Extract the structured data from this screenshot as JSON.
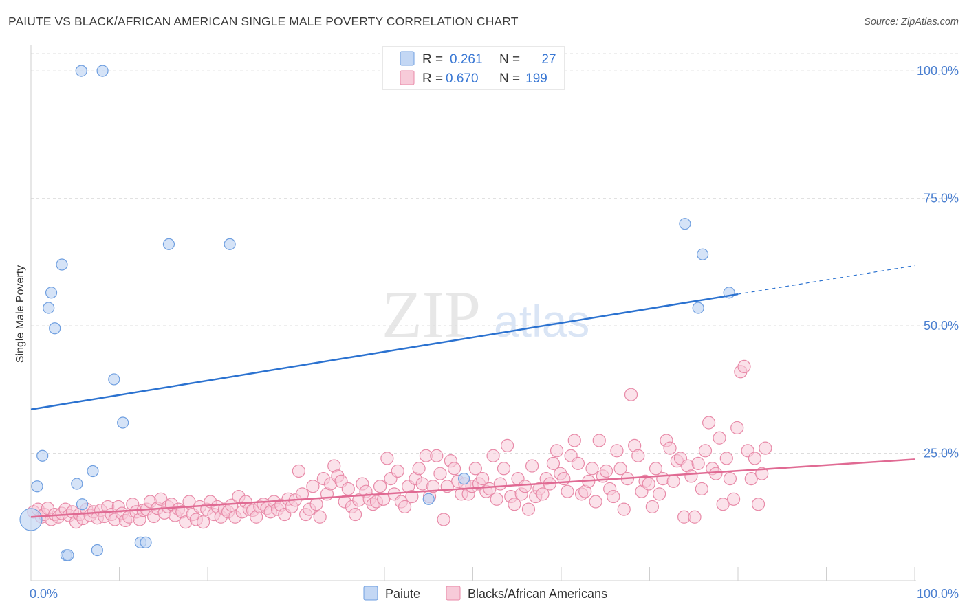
{
  "header": {
    "title": "PAIUTE VS BLACK/AFRICAN AMERICAN SINGLE MALE POVERTY CORRELATION CHART",
    "source": "Source: ZipAtlas.com"
  },
  "watermark": {
    "zip": "ZIP",
    "atlas": "atlas"
  },
  "legend": {
    "rows": [
      {
        "r_label": "R =",
        "r_value": "0.261",
        "n_label": "N =",
        "n_value": "27"
      },
      {
        "r_label": "R =",
        "r_value": "0.670",
        "n_label": "N =",
        "n_value": "199"
      }
    ]
  },
  "bottom_legend": {
    "paiute": "Paiute",
    "black": "Blacks/African Americans"
  },
  "colors": {
    "paiute": "#6f9fe0",
    "paiute_fill": "#c3d7f4",
    "paiute_line": "#2b72d0",
    "black": "#e88aa8",
    "black_fill": "#f7cbd9",
    "black_line": "#e06a93",
    "tick_label": "#4a7fd0",
    "grid": "#dddddd"
  },
  "chart_data": {
    "type": "scatter",
    "title": "PAIUTE VS BLACK/AFRICAN AMERICAN SINGLE MALE POVERTY CORRELATION CHART",
    "xlabel": "",
    "ylabel": "Single Male Poverty",
    "xlim": [
      0,
      100
    ],
    "ylim": [
      0,
      105
    ],
    "x_tick_labels": [
      "0.0%",
      "100.0%"
    ],
    "y_tick_labels": [
      "25.0%",
      "50.0%",
      "75.0%",
      "100.0%"
    ],
    "y_ticks": [
      25,
      50,
      75,
      100
    ],
    "grid": true,
    "series": [
      {
        "name": "Paiute",
        "r": 0.261,
        "n": 27,
        "trend": {
          "x0": 0,
          "y0": 33.6,
          "x1": 80,
          "y1": 56.2,
          "dash_to_x": 100,
          "dash_to_y": 61.8
        },
        "points": [
          [
            0,
            12
          ],
          [
            0.7,
            18.5
          ],
          [
            1.3,
            24.5
          ],
          [
            2.0,
            53.5
          ],
          [
            2.3,
            56.5
          ],
          [
            2.7,
            49.5
          ],
          [
            3.5,
            62
          ],
          [
            4.0,
            5
          ],
          [
            4.2,
            5
          ],
          [
            5.2,
            19
          ],
          [
            5.8,
            15
          ],
          [
            7.0,
            21.5
          ],
          [
            5.7,
            100
          ],
          [
            8.1,
            100
          ],
          [
            7.5,
            6
          ],
          [
            9.4,
            39.5
          ],
          [
            10.4,
            31
          ],
          [
            12.4,
            7.5
          ],
          [
            13.0,
            7.5
          ],
          [
            15.6,
            66
          ],
          [
            22.5,
            66
          ],
          [
            45.0,
            16
          ],
          [
            49.0,
            20
          ],
          [
            74.0,
            70
          ],
          [
            75.5,
            53.5
          ],
          [
            76.0,
            64
          ],
          [
            79.0,
            56.5
          ]
        ]
      },
      {
        "name": "Blacks/African Americans",
        "r": 0.67,
        "n": 199,
        "trend": {
          "x0": 0,
          "y0": 12.5,
          "x1": 100,
          "y1": 23.8
        },
        "points": [
          [
            0.3,
            13.5
          ],
          [
            0.8,
            14
          ],
          [
            1.2,
            12.5
          ],
          [
            1.5,
            13
          ],
          [
            1.9,
            14.2
          ],
          [
            2.3,
            12
          ],
          [
            2.7,
            13
          ],
          [
            3.1,
            12.5
          ],
          [
            3.5,
            13.2
          ],
          [
            3.9,
            14
          ],
          [
            4.3,
            12.8
          ],
          [
            4.7,
            13.5
          ],
          [
            5.1,
            11.5
          ],
          [
            5.5,
            13
          ],
          [
            5.9,
            12.2
          ],
          [
            6.3,
            14
          ],
          [
            6.7,
            12.8
          ],
          [
            7.1,
            13.5
          ],
          [
            7.5,
            12.3
          ],
          [
            7.9,
            13.8
          ],
          [
            8.3,
            12.6
          ],
          [
            8.7,
            14.5
          ],
          [
            9.1,
            13
          ],
          [
            9.5,
            12
          ],
          [
            9.9,
            14.5
          ],
          [
            10.3,
            13.2
          ],
          [
            10.7,
            11.8
          ],
          [
            11.1,
            12.5
          ],
          [
            11.5,
            15
          ],
          [
            11.9,
            13.5
          ],
          [
            12.3,
            12
          ],
          [
            12.7,
            13.8
          ],
          [
            13.1,
            14
          ],
          [
            13.5,
            15.5
          ],
          [
            13.9,
            12.6
          ],
          [
            14.3,
            14.2
          ],
          [
            14.7,
            16
          ],
          [
            15.1,
            13.3
          ],
          [
            15.5,
            14.5
          ],
          [
            15.9,
            15
          ],
          [
            16.3,
            12.8
          ],
          [
            16.7,
            14
          ],
          [
            17.1,
            13.5
          ],
          [
            17.5,
            11.5
          ],
          [
            17.9,
            15.5
          ],
          [
            18.3,
            13
          ],
          [
            18.7,
            12
          ],
          [
            19.1,
            14.5
          ],
          [
            19.5,
            11.5
          ],
          [
            19.9,
            14
          ],
          [
            20.3,
            15.5
          ],
          [
            20.7,
            13
          ],
          [
            21.1,
            14.5
          ],
          [
            21.5,
            12.5
          ],
          [
            21.9,
            14
          ],
          [
            22.3,
            13.5
          ],
          [
            22.7,
            14.8
          ],
          [
            23.1,
            12.5
          ],
          [
            23.5,
            16.5
          ],
          [
            23.9,
            13.5
          ],
          [
            24.3,
            15.5
          ],
          [
            24.7,
            14
          ],
          [
            25.1,
            13.8
          ],
          [
            25.5,
            12.5
          ],
          [
            25.9,
            14.5
          ],
          [
            26.3,
            15
          ],
          [
            26.7,
            14.2
          ],
          [
            27.1,
            13.5
          ],
          [
            27.5,
            15.5
          ],
          [
            27.9,
            14
          ],
          [
            28.3,
            14.8
          ],
          [
            28.7,
            13
          ],
          [
            29.1,
            16
          ],
          [
            29.5,
            14.5
          ],
          [
            29.9,
            15.8
          ],
          [
            30.3,
            21.5
          ],
          [
            30.7,
            17
          ],
          [
            31.1,
            13
          ],
          [
            31.5,
            14
          ],
          [
            31.9,
            18.5
          ],
          [
            32.3,
            15
          ],
          [
            32.7,
            12.5
          ],
          [
            33.1,
            20
          ],
          [
            33.5,
            17
          ],
          [
            33.9,
            19
          ],
          [
            34.3,
            22.5
          ],
          [
            34.7,
            20.5
          ],
          [
            35.1,
            19.5
          ],
          [
            35.5,
            15.5
          ],
          [
            35.9,
            18
          ],
          [
            36.3,
            14.5
          ],
          [
            36.7,
            13
          ],
          [
            37.1,
            15.8
          ],
          [
            37.5,
            19
          ],
          [
            37.9,
            17.5
          ],
          [
            38.3,
            16
          ],
          [
            38.7,
            15
          ],
          [
            39.1,
            15.5
          ],
          [
            39.5,
            18.5
          ],
          [
            39.9,
            16
          ],
          [
            40.3,
            24
          ],
          [
            40.7,
            20
          ],
          [
            41.1,
            17
          ],
          [
            41.5,
            21.5
          ],
          [
            41.9,
            15.5
          ],
          [
            42.3,
            14.5
          ],
          [
            42.7,
            18.5
          ],
          [
            43.1,
            16.5
          ],
          [
            43.5,
            20
          ],
          [
            43.9,
            22
          ],
          [
            44.3,
            19
          ],
          [
            44.7,
            24.5
          ],
          [
            45.1,
            16.5
          ],
          [
            45.5,
            18.5
          ],
          [
            45.9,
            24.5
          ],
          [
            46.3,
            21
          ],
          [
            46.7,
            12
          ],
          [
            47.1,
            18.5
          ],
          [
            47.5,
            23.5
          ],
          [
            47.9,
            22
          ],
          [
            48.3,
            19.5
          ],
          [
            48.7,
            17
          ],
          [
            49.1,
            19
          ],
          [
            49.5,
            17
          ],
          [
            49.9,
            18.5
          ],
          [
            50.3,
            22
          ],
          [
            50.7,
            19
          ],
          [
            51.1,
            20
          ],
          [
            51.5,
            17.5
          ],
          [
            51.9,
            18
          ],
          [
            52.3,
            24.5
          ],
          [
            52.7,
            16
          ],
          [
            53.1,
            19
          ],
          [
            53.5,
            22
          ],
          [
            53.9,
            26.5
          ],
          [
            54.3,
            16.5
          ],
          [
            54.7,
            15
          ],
          [
            55.1,
            20
          ],
          [
            55.5,
            17
          ],
          [
            55.9,
            18.5
          ],
          [
            56.3,
            14
          ],
          [
            56.7,
            22.5
          ],
          [
            57.1,
            16.5
          ],
          [
            57.5,
            18
          ],
          [
            57.9,
            17
          ],
          [
            58.3,
            20
          ],
          [
            58.7,
            19
          ],
          [
            59.1,
            23
          ],
          [
            59.5,
            25.5
          ],
          [
            59.9,
            21
          ],
          [
            60.3,
            20
          ],
          [
            60.7,
            17.5
          ],
          [
            61.1,
            24.5
          ],
          [
            61.5,
            27.5
          ],
          [
            61.9,
            23
          ],
          [
            62.3,
            17
          ],
          [
            62.7,
            17.5
          ],
          [
            63.1,
            19.5
          ],
          [
            63.5,
            22
          ],
          [
            63.9,
            15.5
          ],
          [
            64.3,
            27.5
          ],
          [
            64.7,
            20.5
          ],
          [
            65.1,
            21.5
          ],
          [
            65.5,
            18
          ],
          [
            65.9,
            16.5
          ],
          [
            66.3,
            25.5
          ],
          [
            66.7,
            22
          ],
          [
            67.1,
            14
          ],
          [
            67.5,
            20
          ],
          [
            67.9,
            36.5
          ],
          [
            68.3,
            26.5
          ],
          [
            68.7,
            24.5
          ],
          [
            69.1,
            17.5
          ],
          [
            69.5,
            19.5
          ],
          [
            69.9,
            19
          ],
          [
            70.3,
            14.5
          ],
          [
            70.7,
            22
          ],
          [
            71.1,
            17
          ],
          [
            71.5,
            20
          ],
          [
            71.9,
            27.5
          ],
          [
            72.3,
            26
          ],
          [
            72.7,
            19.5
          ],
          [
            73.1,
            23.5
          ],
          [
            73.5,
            24
          ],
          [
            73.9,
            12.5
          ],
          [
            74.3,
            22.5
          ],
          [
            74.7,
            20.5
          ],
          [
            75.1,
            12.5
          ],
          [
            75.5,
            23
          ],
          [
            75.9,
            18
          ],
          [
            76.3,
            25.5
          ],
          [
            76.7,
            31
          ],
          [
            77.1,
            22
          ],
          [
            77.5,
            21
          ],
          [
            77.9,
            28
          ],
          [
            78.3,
            15
          ],
          [
            78.7,
            24
          ],
          [
            79.1,
            20
          ],
          [
            79.5,
            16
          ],
          [
            79.9,
            30
          ],
          [
            80.3,
            41
          ],
          [
            80.7,
            42
          ],
          [
            81.1,
            25.5
          ],
          [
            81.5,
            20
          ],
          [
            81.9,
            24
          ],
          [
            82.3,
            15
          ],
          [
            82.7,
            21
          ],
          [
            83.1,
            26
          ]
        ]
      }
    ]
  }
}
